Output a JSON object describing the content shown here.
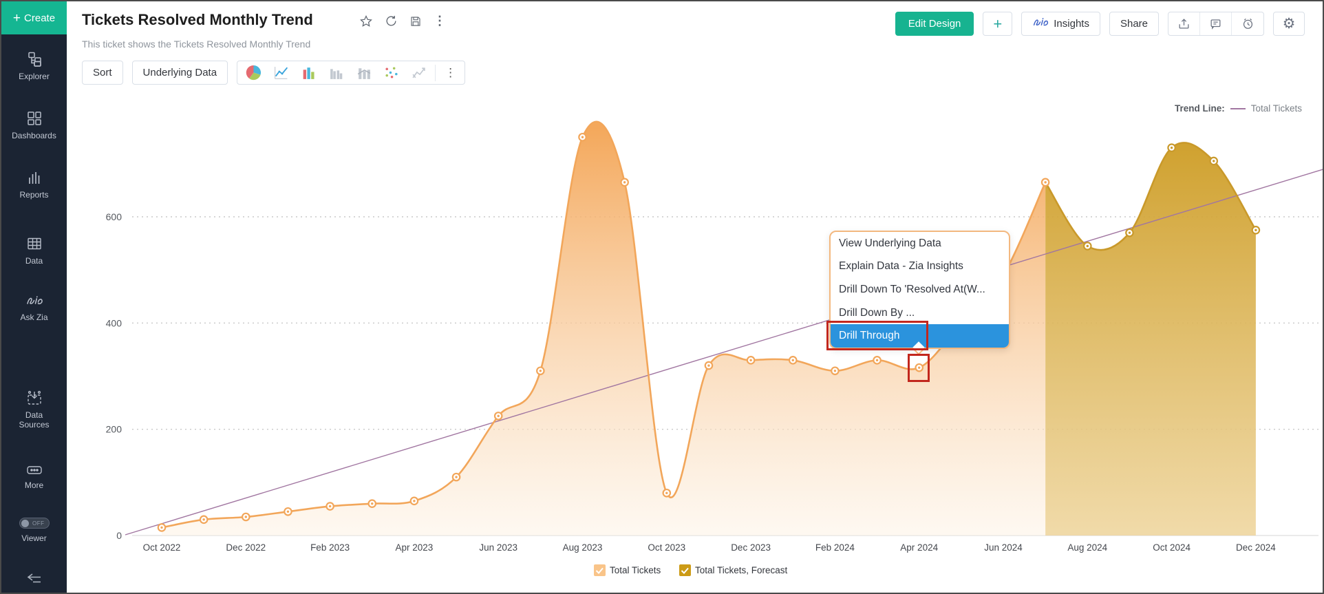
{
  "sidebar": {
    "create_label": "Create",
    "items": [
      {
        "label": "Explorer",
        "icon": "explorer-icon"
      },
      {
        "label": "Dashboards",
        "icon": "dashboards-icon"
      },
      {
        "label": "Reports",
        "icon": "reports-icon"
      },
      {
        "label": "Data",
        "icon": "data-icon"
      },
      {
        "label": "Ask Zia",
        "icon": "ask-zia-icon"
      },
      {
        "label": "Data Sources",
        "icon": "data-sources-icon"
      },
      {
        "label": "More",
        "icon": "more-icon"
      }
    ],
    "viewer": {
      "label": "Viewer",
      "toggle_label": "OFF"
    }
  },
  "header": {
    "title": "Tickets Resolved Monthly Trend",
    "subtitle": "This ticket shows the Tickets Resolved Monthly Trend",
    "title_icons": [
      "star-icon",
      "refresh-icon",
      "save-icon",
      "kebab-icon"
    ],
    "actions": {
      "edit_design": "Edit Design",
      "add": "+",
      "insights": "Insights",
      "share": "Share",
      "icon_buttons": [
        "export-icon",
        "comment-icon",
        "alarm-icon"
      ],
      "settings_icon": "gear-icon"
    }
  },
  "toolbar": {
    "sort_label": "Sort",
    "underlying_label": "Underlying Data",
    "chart_types": [
      "pie-chart-icon",
      "line-chart-icon",
      "bar-chart-icon",
      "grouped-bar-icon",
      "stacked-bar-icon",
      "scatter-icon",
      "combo-icon"
    ]
  },
  "context_menu": {
    "items": [
      "View Underlying Data",
      "Explain Data - Zia Insights",
      "Drill Down To 'Resolved At(W...",
      "Drill Down By ...",
      "Drill Through"
    ],
    "highlighted_index": 4,
    "highlight_color": "#2b93dd",
    "border_color": "#f3b87f"
  },
  "annotations": {
    "highlight_box_color": "#c2271d"
  },
  "trend_legend": {
    "label": "Trend Line:",
    "series": "Total Tickets",
    "color": "#a176a1"
  },
  "chart_data": {
    "type": "area",
    "title": "Tickets Resolved Monthly Trend",
    "categories": [
      "Oct 2022",
      "Nov 2022",
      "Dec 2022",
      "Jan 2023",
      "Feb 2023",
      "Mar 2023",
      "Apr 2023",
      "May 2023",
      "Jun 2023",
      "Jul 2023",
      "Aug 2023",
      "Sep 2023",
      "Oct 2023",
      "Nov 2023",
      "Dec 2023",
      "Jan 2024",
      "Feb 2024",
      "Mar 2024",
      "Apr 2024",
      "May 2024",
      "Jun 2024",
      "Jul 2024",
      "Aug 2024",
      "Sep 2024",
      "Oct 2024",
      "Nov 2024",
      "Dec 2024"
    ],
    "x_tick_labels": [
      "Oct 2022",
      "Dec 2022",
      "Feb 2023",
      "Apr 2023",
      "Jun 2023",
      "Aug 2023",
      "Oct 2023",
      "Dec 2023",
      "Feb 2024",
      "Apr 2024",
      "Jun 2024",
      "Aug 2024",
      "Oct 2024",
      "Dec 2024"
    ],
    "values": [
      15,
      30,
      35,
      45,
      55,
      60,
      65,
      110,
      225,
      310,
      750,
      665,
      80,
      320,
      330,
      330,
      310,
      330,
      316,
      400,
      490,
      665,
      545,
      570,
      730,
      705,
      575
    ],
    "forecast_start_index": 21,
    "series": [
      {
        "name": "Total Tickets",
        "line_color": "#f2a65a",
        "fill_top": "#f3a14e",
        "fill_bottom": "#fdf3e6"
      },
      {
        "name": "Total Tickets, Forecast",
        "line_color": "#c9992a",
        "fill_top": "#cc9a1f",
        "fill_bottom": "#eed49a"
      }
    ],
    "trend_line": {
      "name": "Total Tickets",
      "color": "#a176a1"
    },
    "y_ticks": [
      0,
      200,
      400,
      600
    ],
    "ylim": [
      0,
      770
    ],
    "grid": "dotted-horizontal",
    "legend_position": "bottom-center",
    "selected_point": {
      "category": "Apr 2024",
      "value": 316
    }
  }
}
